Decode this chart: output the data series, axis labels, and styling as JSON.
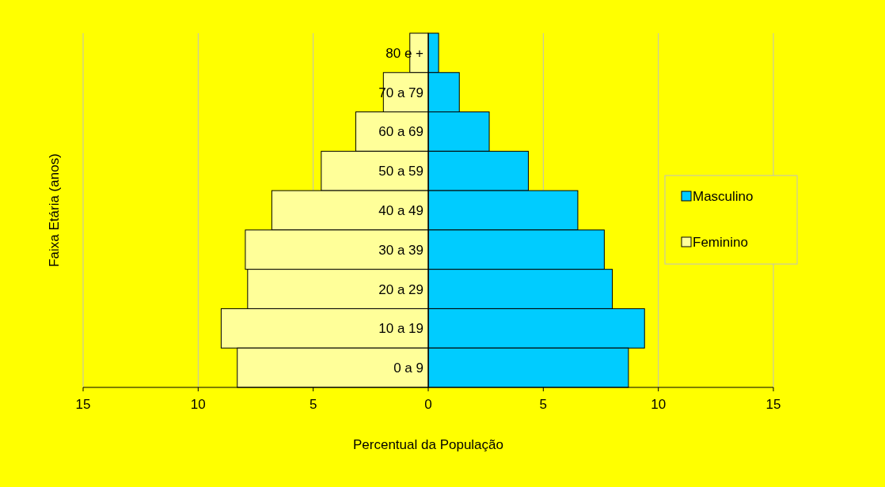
{
  "chart_data": {
    "type": "bar",
    "orientation": "horizontal",
    "stacked": true,
    "xlabel": "Percentual da População",
    "ylabel": "Faixa Etária (anos)",
    "categories": [
      "80 e +",
      "70 a 79",
      "60 a 69",
      "50 a 59",
      "40 a 49",
      "30 a 39",
      "20 a 29",
      "10 a 19",
      "0 a 9"
    ],
    "series": [
      {
        "name": "Masculino",
        "color": "#00ccff",
        "values": [
          0.45,
          1.35,
          2.65,
          4.35,
          6.5,
          7.65,
          8.0,
          9.4,
          8.7
        ]
      },
      {
        "name": "Feminino",
        "color": "#ffff99",
        "values": [
          -0.8,
          -1.95,
          -3.15,
          -4.65,
          -6.8,
          -7.95,
          -7.85,
          -9.0,
          -8.3
        ]
      }
    ],
    "xlim": [
      -15,
      15
    ],
    "xticks": [
      {
        "value": -15,
        "label": "15"
      },
      {
        "value": -10,
        "label": "10"
      },
      {
        "value": -5,
        "label": "5"
      },
      0,
      5,
      10,
      15
    ],
    "grid": "x",
    "legend": "right"
  }
}
